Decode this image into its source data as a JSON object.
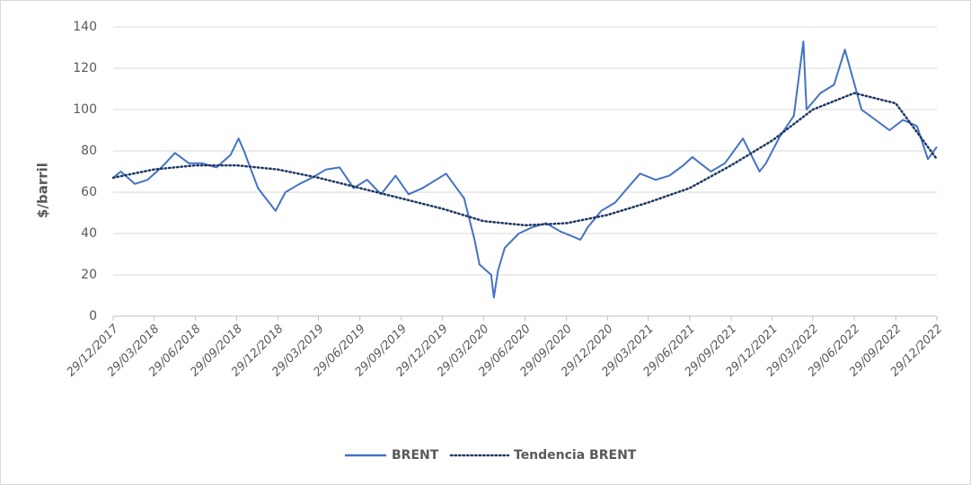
{
  "chart_data": {
    "type": "line",
    "y_label": "$/barril",
    "ylim": [
      0,
      140
    ],
    "yticks": [
      0,
      20,
      40,
      60,
      80,
      100,
      120,
      140
    ],
    "grid": true,
    "xlim": [
      "29/12/2017",
      "29/12/2022"
    ],
    "xticks": [
      "29/12/2017",
      "29/03/2018",
      "29/06/2018",
      "29/09/2018",
      "29/12/2018",
      "29/03/2019",
      "29/06/2019",
      "29/09/2019",
      "29/12/2019",
      "29/03/2020",
      "29/06/2020",
      "29/09/2020",
      "29/12/2020",
      "29/03/2021",
      "29/06/2021",
      "29/09/2021",
      "29/12/2021",
      "29/03/2022",
      "29/06/2022",
      "29/09/2022",
      "29/12/2022"
    ],
    "legend": "bottom",
    "series": [
      {
        "name": "BRENT",
        "color": "#4472c4",
        "style": "solid",
        "x": [
          "29/12/2017",
          "15/01/2018",
          "15/02/2018",
          "15/03/2018",
          "15/04/2018",
          "15/05/2018",
          "15/06/2018",
          "15/07/2018",
          "15/08/2018",
          "15/09/2018",
          "03/10/2018",
          "15/10/2018",
          "15/11/2018",
          "29/11/2018",
          "24/12/2018",
          "15/01/2019",
          "15/02/2019",
          "15/03/2019",
          "15/04/2019",
          "15/05/2019",
          "15/06/2019",
          "15/07/2019",
          "15/08/2019",
          "16/09/2019",
          "15/10/2019",
          "15/11/2019",
          "15/12/2019",
          "06/01/2020",
          "15/02/2020",
          "09/03/2020",
          "20/03/2020",
          "15/04/2020",
          "21/04/2020",
          "30/04/2020",
          "15/05/2020",
          "15/06/2020",
          "15/07/2020",
          "15/08/2020",
          "15/09/2020",
          "30/10/2020",
          "15/11/2020",
          "15/12/2020",
          "15/01/2021",
          "15/02/2021",
          "11/03/2021",
          "15/04/2021",
          "15/05/2021",
          "15/06/2021",
          "05/07/2021",
          "15/08/2021",
          "15/09/2021",
          "25/10/2021",
          "01/12/2021",
          "15/12/2021",
          "15/01/2022",
          "15/02/2022",
          "08/03/2022",
          "15/03/2022",
          "15/04/2022",
          "15/05/2022",
          "08/06/2022",
          "15/07/2022",
          "15/08/2022",
          "15/09/2022",
          "15/10/2022",
          "15/11/2022",
          "09/12/2022",
          "29/12/2022"
        ],
        "values": [
          67,
          70,
          64,
          66,
          72,
          79,
          74,
          74,
          72,
          78,
          86,
          80,
          62,
          58,
          51,
          60,
          64,
          67,
          71,
          72,
          62,
          66,
          59,
          68,
          59,
          62,
          66,
          69,
          57,
          37,
          25,
          20,
          9,
          22,
          33,
          40,
          43,
          45,
          41,
          37,
          43,
          51,
          55,
          63,
          69,
          66,
          68,
          73,
          77,
          70,
          74,
          86,
          70,
          74,
          87,
          97,
          133,
          100,
          108,
          112,
          129,
          100,
          95,
          90,
          95,
          92,
          76,
          82
        ]
      },
      {
        "name": "Tendencia BRENT",
        "color": "#1f3864",
        "style": "dotted",
        "x": [
          "29/12/2017",
          "29/03/2018",
          "29/06/2018",
          "29/09/2018",
          "29/12/2018",
          "29/03/2019",
          "29/06/2019",
          "29/09/2019",
          "29/12/2019",
          "29/03/2020",
          "29/06/2020",
          "29/09/2020",
          "29/12/2020",
          "29/03/2021",
          "29/06/2021",
          "29/09/2021",
          "29/12/2021",
          "29/03/2022",
          "29/06/2022",
          "29/09/2022",
          "29/12/2022"
        ],
        "values": [
          67,
          71,
          73,
          73,
          71,
          67,
          62,
          57,
          52,
          46,
          44,
          45,
          49,
          55,
          62,
          73,
          85,
          100,
          108,
          103,
          76
        ]
      }
    ]
  }
}
